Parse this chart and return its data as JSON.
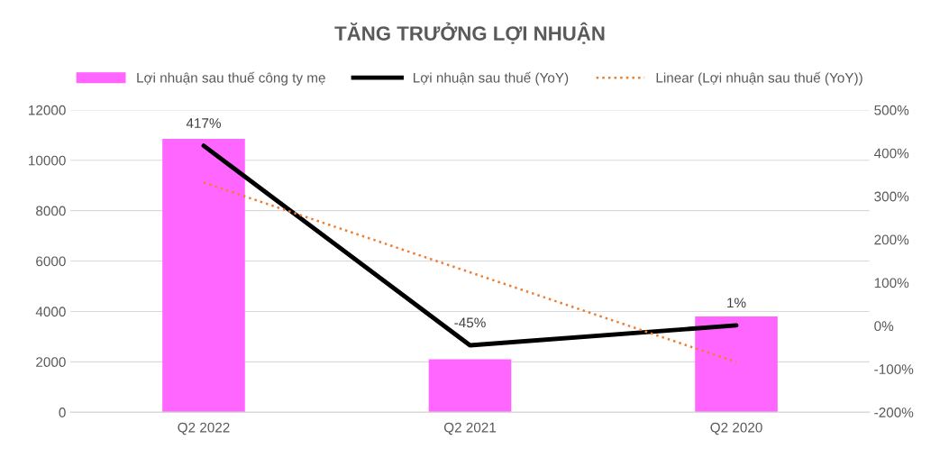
{
  "chart_data": {
    "type": "bar",
    "title": "TĂNG TRƯỞNG LỢI NHUẬN",
    "categories": [
      "Q2 2022",
      "Q2 2021",
      "Q2 2020"
    ],
    "series": [
      {
        "name": "Lợi nhuận sau thuế công ty mẹ",
        "color": "#ff66ff",
        "values": [
          10850,
          2100,
          3800
        ]
      },
      {
        "name": "Lợi nhuận sau thuế (YoY)",
        "type": "line",
        "axis": "y2",
        "color": "#000000",
        "line_style": "solid",
        "values": [
          417,
          -45,
          1
        ],
        "value_labels": [
          "417%",
          "-45%",
          "1%"
        ]
      },
      {
        "name": "Linear (Lợi nhuận sau thuế (YoY))",
        "type": "line",
        "axis": "y2",
        "color": "#ed7d31",
        "line_style": "dotted",
        "values": [
          332,
          124,
          -84
        ]
      }
    ],
    "ylim": [
      0,
      12000
    ],
    "yticks": [
      0,
      2000,
      4000,
      6000,
      8000,
      10000,
      12000
    ],
    "y2lim": [
      -200,
      500
    ],
    "y2ticks": [
      {
        "value": -200,
        "label": "-200%"
      },
      {
        "value": -100,
        "label": "-100%"
      },
      {
        "value": 0,
        "label": "0%"
      },
      {
        "value": 100,
        "label": "100%"
      },
      {
        "value": 200,
        "label": "200%"
      },
      {
        "value": 300,
        "label": "300%"
      },
      {
        "value": 400,
        "label": "400%"
      },
      {
        "value": 500,
        "label": "500%"
      }
    ],
    "grid": "y",
    "legend": "top",
    "marker": "none"
  }
}
